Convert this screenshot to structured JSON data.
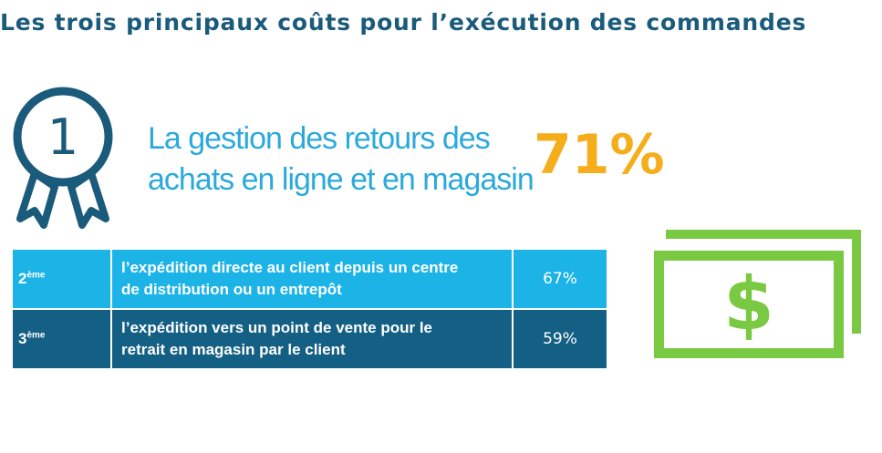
{
  "title": "Les trois principaux coûts pour l’exécution des commandes",
  "first": {
    "rank": "1",
    "label_line1": "La gestion des retours des",
    "label_line2": "achats en ligne et en magasin",
    "percent": "71%"
  },
  "table": {
    "rows": [
      {
        "rank_num": "2",
        "rank_suffix": "ème",
        "line1": "l’expédition directe au client  depuis un centre",
        "line2": "de distribution ou un entrepôt",
        "percent": "67%"
      },
      {
        "rank_num": "3",
        "rank_suffix": "ème",
        "line1": "l’expédition vers un point de vente pour le",
        "line2": "retrait en magasin par le client",
        "percent": "59%"
      }
    ]
  },
  "icons": {
    "medal": "award-ribbon-icon",
    "money": "dollar-bill-icon",
    "dollar_symbol": "$"
  },
  "colors": {
    "title": "#1a5a7a",
    "accent_blue": "#2ba9dc",
    "accent_orange": "#f5ad1b",
    "row_light": "#1cb3e7",
    "row_dark": "#145f84",
    "money_green": "#7ac943"
  }
}
